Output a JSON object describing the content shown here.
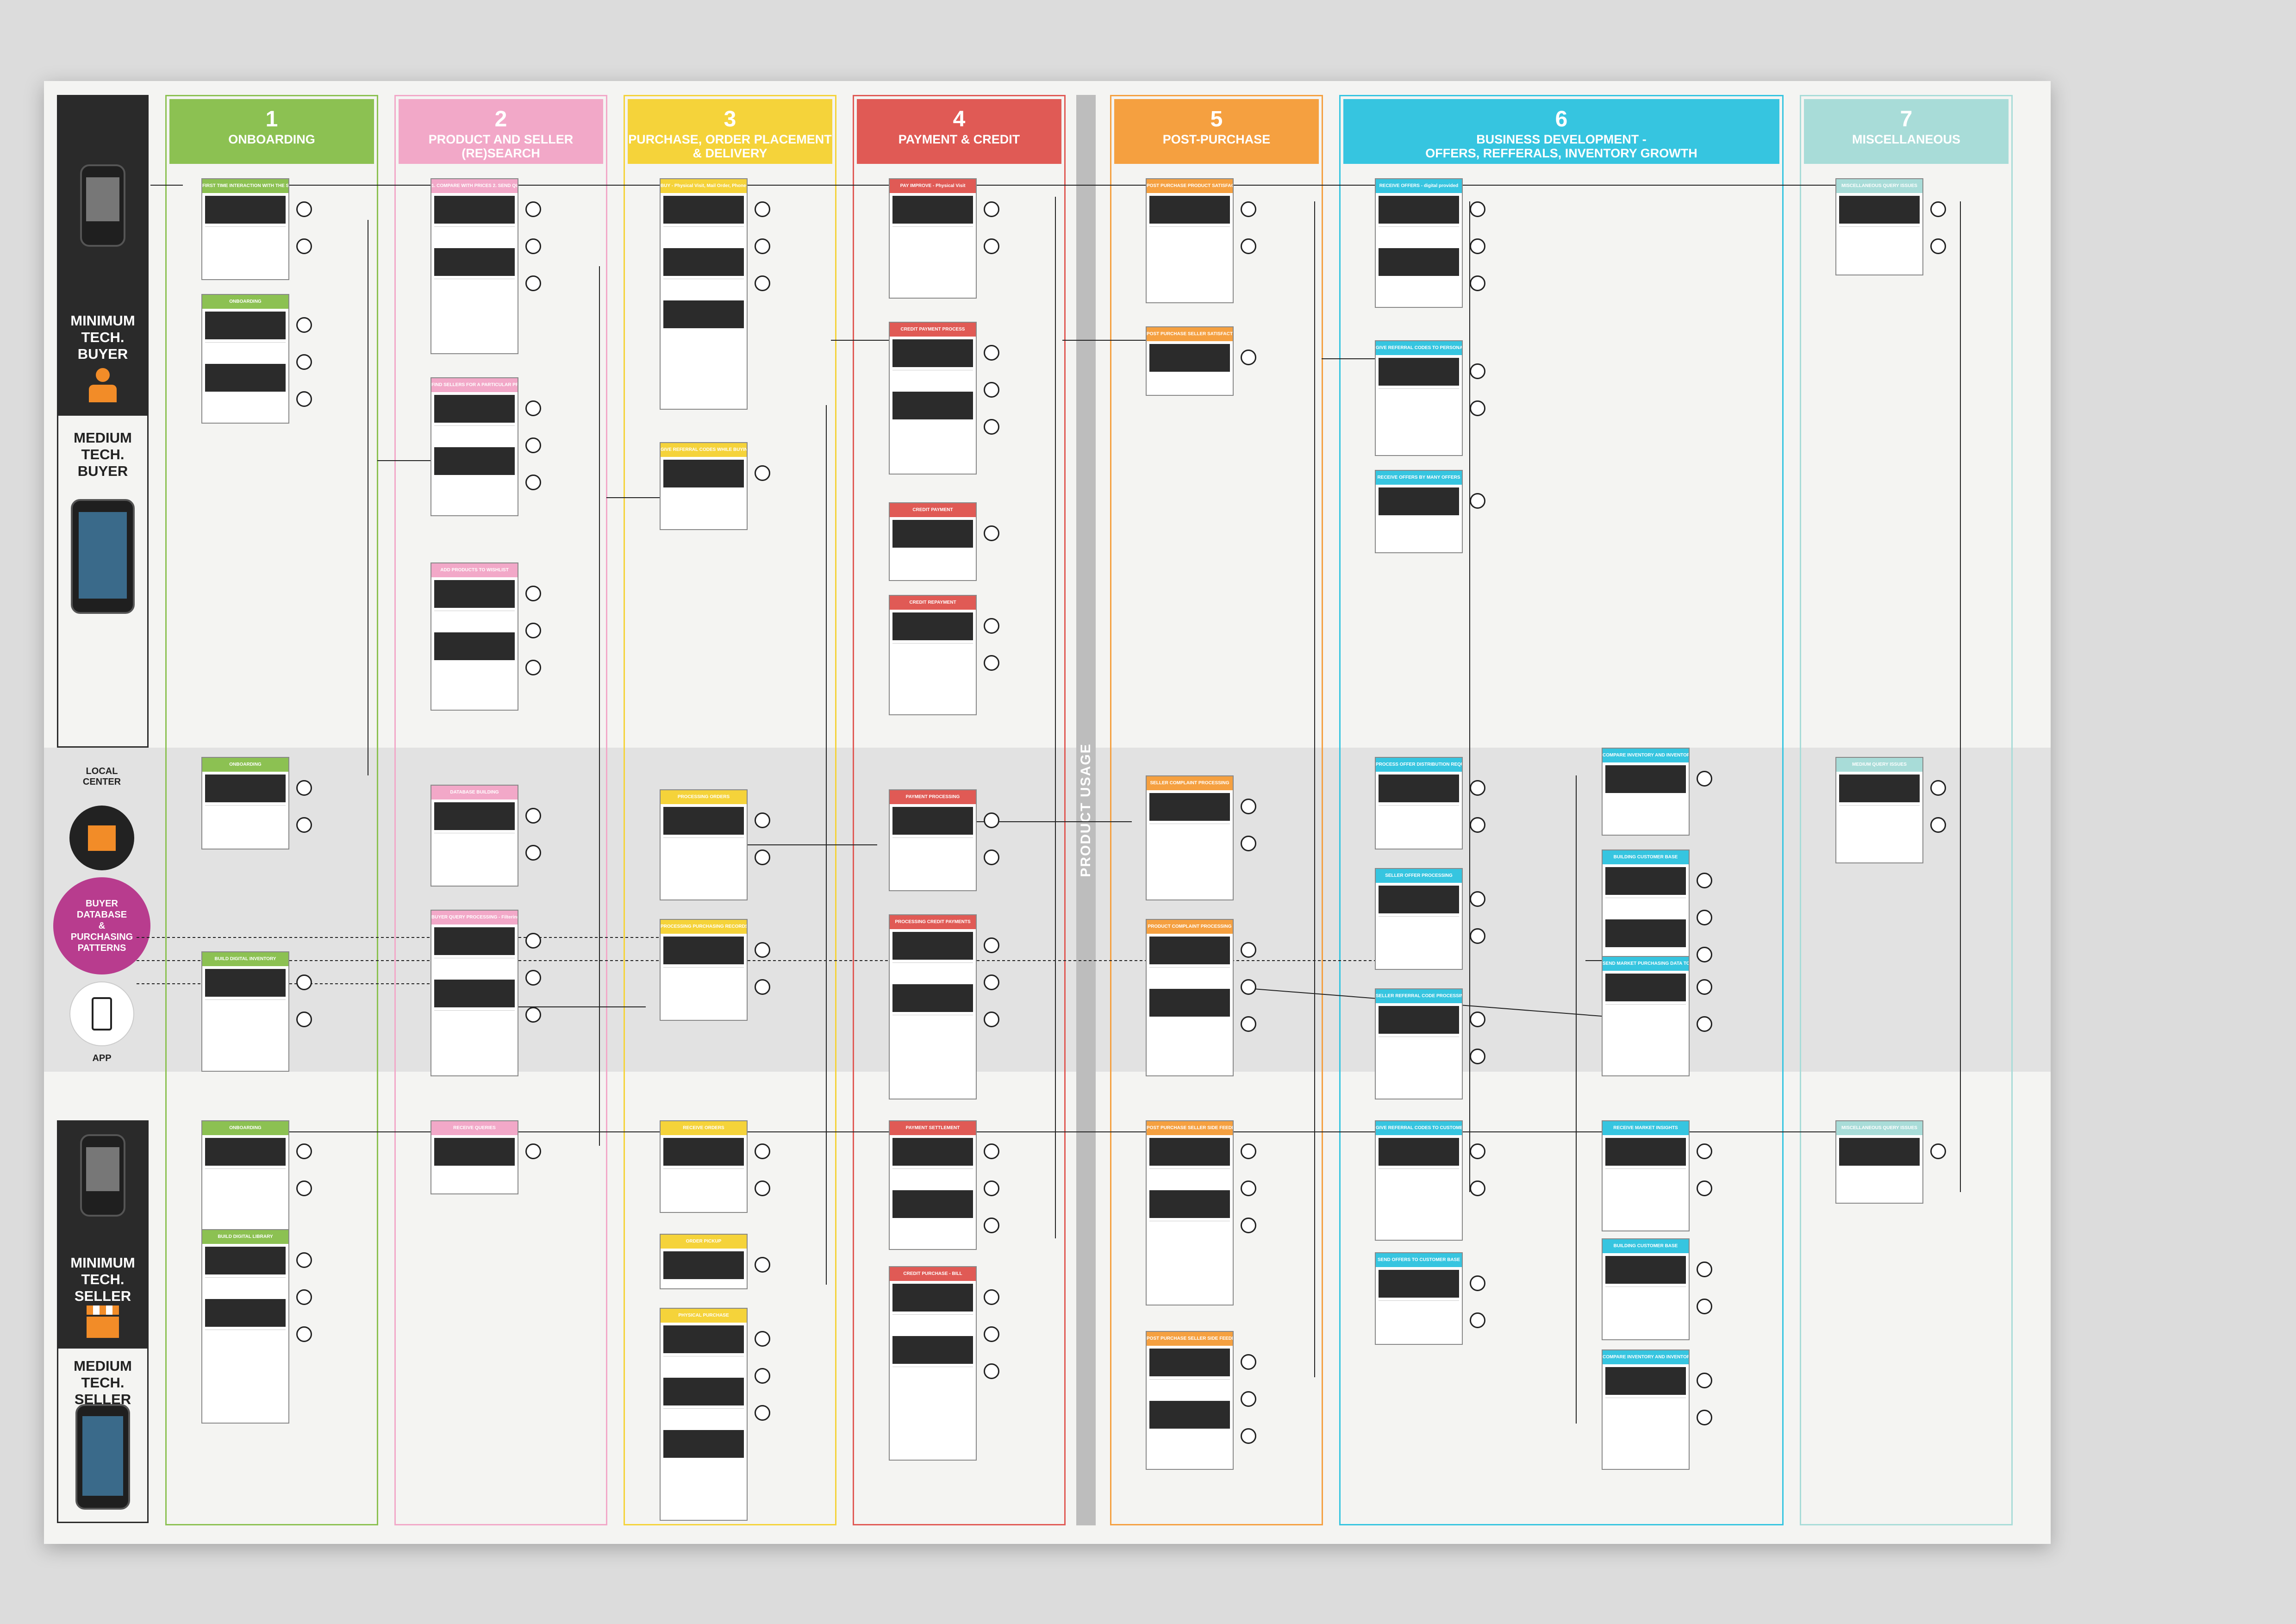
{
  "band_title": "PRODUCT USAGE",
  "personas": [
    {
      "id": "buyer",
      "labels": [
        "MINIMUM\nTECH. BUYER",
        "MEDIUM\nTECH. BUYER"
      ],
      "icon": "person-icon"
    },
    {
      "id": "seller",
      "labels": [
        "MINIMUM\nTECH. SELLER",
        "MEDIUM\nTECH. SELLER"
      ],
      "icon": "shop-icon"
    }
  ],
  "middle": {
    "local_center": "LOCAL\nCENTER",
    "database": "BUYER\nDATABASE\n&\nPURCHASING\nPATTERNS",
    "app": "APP"
  },
  "columns": [
    {
      "num": "1",
      "title": "ONBOARDING",
      "color": "#8cc152"
    },
    {
      "num": "2",
      "title": "PRODUCT AND SELLER\n(RE)SEARCH",
      "color": "#f2a8c8"
    },
    {
      "num": "3",
      "title": "PURCHASE, ORDER PLACEMENT\n& DELIVERY",
      "color": "#f5d33a"
    },
    {
      "num": "4",
      "title": "PAYMENT & CREDIT",
      "color": "#e05a55"
    },
    {
      "num": "5",
      "title": "POST-PURCHASE",
      "color": "#f5a040"
    },
    {
      "num": "6",
      "title": "BUSINESS DEVELOPMENT -\nOFFERS, REFFERALS, INVENTORY GROWTH",
      "color": "#36c5e0"
    },
    {
      "num": "7",
      "title": "MISCELLANEOUS",
      "color": "#a8dcd8"
    }
  ],
  "cards": {
    "c1": [
      "FIRST TIME INTERACTION WITH THE SERVICE",
      "ONBOARDING",
      "ONBOARDING",
      "BUILD DIGITAL INVENTORY",
      "ONBOARDING",
      "BUILD DIGITAL LIBRARY"
    ],
    "c2": [
      "1. COMPARE WITH PRICES 2. SEND QUERIES - BARGAIN",
      "FIND SELLERS FOR A PARTICULAR PRODUCT",
      "ADD PRODUCTS TO WISHLIST",
      "DATABASE BUILDING",
      "BUYER QUERY PROCESSING - Filtering sellers by requirements",
      "RECEIVE QUERIES"
    ],
    "c3": [
      "BUY - Physical Visit, Mail Order, Phone App Order",
      "GIVE REFERRAL CODES WHILE BUYING",
      "PROCESSING ORDERS",
      "PROCESSING PURCHASING RECORDS",
      "RECEIVE ORDERS",
      "ORDER PICKUP",
      "PHYSICAL PURCHASE"
    ],
    "c4": [
      "PAY IMPROVE - Physical Visit",
      "CREDIT PAYMENT PROCESS",
      "CREDIT PAYMENT",
      "CREDIT REPAYMENT",
      "PAYMENT PROCESSING",
      "PROCESSING CREDIT PAYMENTS",
      "PAYMENT SETTLEMENT",
      "CREDIT PURCHASE - BILL"
    ],
    "c5": [
      "POST PURCHASE PRODUCT SATISFACTION",
      "POST PURCHASE SELLER SATISFACTION",
      "SELLER COMPLAINT PROCESSING",
      "PRODUCT COMPLAINT PROCESSING",
      "POST PURCHASE SELLER SIDE FEEDBACK",
      "POST PURCHASE SELLER SIDE FEEDBACK"
    ],
    "c6": [
      "RECEIVE OFFERS - digital provided",
      "GIVE REFERRAL CODES TO PERSONAL NETWORK",
      "RECEIVE OFFERS BY MANY OFFERS",
      "PROCESS OFFER DISTRIBUTION REQUESTS",
      "SELLER OFFER PROCESSING",
      "SELLER REFERRAL CODE PROCESSING",
      "COMPARE INVENTORY AND INVENTORY PRICES",
      "BUILDING CUSTOMER BASE",
      "GIVE REFERRAL CODES TO CUSTOMER BASE",
      "SEND OFFERS TO CUSTOMER BASE",
      "SEND MARKET PURCHASING DATA TO SELLERS",
      "RECEIVE MARKET INSIGHTS",
      "BUILDING CUSTOMER BASE",
      "COMPARE INVENTORY AND INVENTORY PRICES"
    ],
    "c7": [
      "MISCELLANEOUS QUERY ISSUES",
      "MEDIUM QUERY ISSUES",
      "MISCELLANEOUS QUERY ISSUES"
    ]
  }
}
